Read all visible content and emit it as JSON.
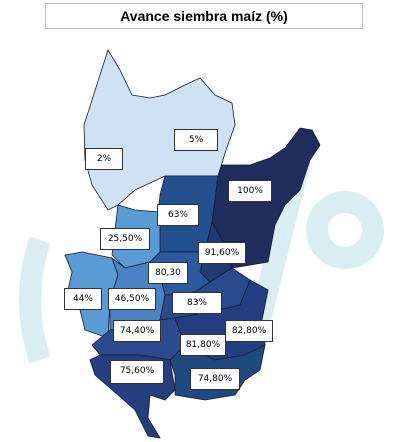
{
  "title": "Avance siembra maíz   (%)",
  "labels": [
    "5%",
    "2%",
    "100%",
    "63%",
    "25,50%",
    "91,60%",
    "80,30",
    "44%",
    "46,50%",
    "83%",
    "74,40%",
    "82,80%",
    "81,80%",
    "75,60%",
    "74,80%"
  ]
}
